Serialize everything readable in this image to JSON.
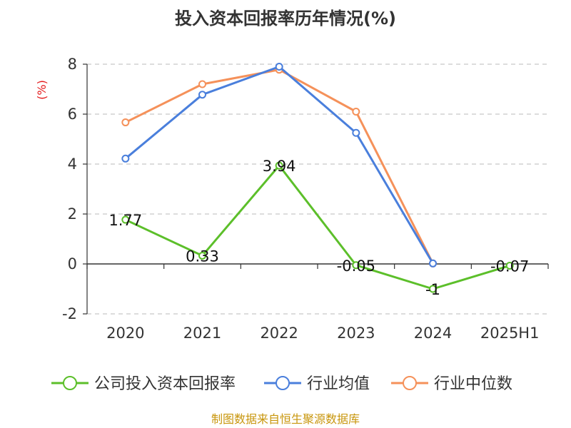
{
  "chart_data": {
    "type": "line",
    "title": "投入资本回报率历年情况(%)",
    "y_unit": "(%)",
    "categories": [
      "2020",
      "2021",
      "2022",
      "2023",
      "2024",
      "2025H1"
    ],
    "ylim": [
      -2,
      8
    ],
    "yticks": [
      -2,
      0,
      2,
      4,
      6,
      8
    ],
    "grid": true,
    "legend_position": "bottom",
    "series": [
      {
        "name": "公司投入资本回报率",
        "color": "#5cbf2a",
        "values": [
          1.77,
          0.33,
          3.94,
          -0.05,
          -1,
          -0.07
        ],
        "labels": [
          "1.77",
          "0.33",
          "3.94",
          "-0.05",
          "-1",
          "-0.07"
        ]
      },
      {
        "name": "行业均值",
        "color": "#4a7fdc",
        "values": [
          4.22,
          6.78,
          7.9,
          5.25,
          0.02,
          null
        ]
      },
      {
        "name": "行业中位数",
        "color": "#f5915a",
        "values": [
          5.67,
          7.2,
          7.78,
          6.1,
          0.02,
          null
        ]
      }
    ],
    "source": "制图数据来自恒生聚源数据库"
  }
}
